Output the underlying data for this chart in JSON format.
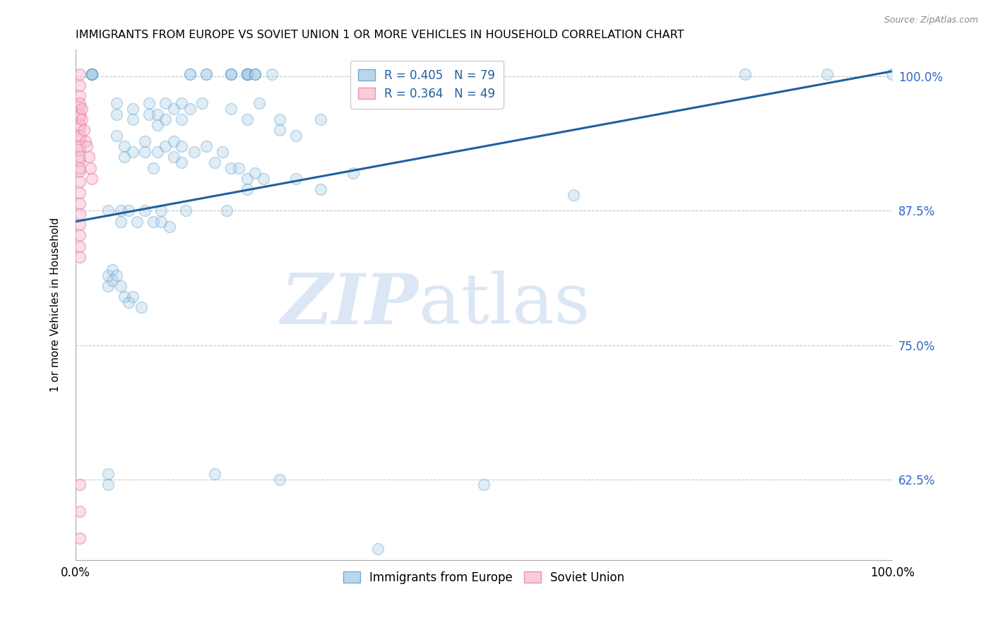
{
  "title": "IMMIGRANTS FROM EUROPE VS SOVIET UNION 1 OR MORE VEHICLES IN HOUSEHOLD CORRELATION CHART",
  "source": "Source: ZipAtlas.com",
  "ylabel": "1 or more Vehicles in Household",
  "xlim": [
    0.0,
    1.0
  ],
  "ylim": [
    0.55,
    1.025
  ],
  "yticks": [
    0.625,
    0.75,
    0.875,
    1.0
  ],
  "ytick_labels": [
    "62.5%",
    "75.0%",
    "87.5%",
    "100.0%"
  ],
  "xticks": [
    0.0,
    0.1,
    0.2,
    0.3,
    0.4,
    0.5,
    0.6,
    0.7,
    0.8,
    0.9,
    1.0
  ],
  "xtick_labels": [
    "0.0%",
    "",
    "",
    "",
    "",
    "",
    "",
    "",
    "",
    "",
    "100.0%"
  ],
  "legend_labels": [
    "Immigrants from Europe",
    "Soviet Union"
  ],
  "blue_R": 0.405,
  "blue_N": 79,
  "pink_R": 0.364,
  "pink_N": 49,
  "blue_color": "#a8cce8",
  "blue_edge_color": "#5b9ec9",
  "pink_color": "#f9bfd0",
  "pink_edge_color": "#e87fa0",
  "trendline_color": "#2060a0",
  "background_color": "#ffffff",
  "watermark_zip": "ZIP",
  "watermark_atlas": "atlas",
  "trendline_x0": 0.0,
  "trendline_y0": 0.865,
  "trendline_x1": 1.0,
  "trendline_y1": 1.005,
  "blue_scatter": [
    [
      0.02,
      1.002
    ],
    [
      0.02,
      1.002
    ],
    [
      0.02,
      1.002
    ],
    [
      0.02,
      1.002
    ],
    [
      0.02,
      1.002
    ],
    [
      0.14,
      1.002
    ],
    [
      0.14,
      1.002
    ],
    [
      0.16,
      1.002
    ],
    [
      0.16,
      1.002
    ],
    [
      0.19,
      1.002
    ],
    [
      0.19,
      1.002
    ],
    [
      0.19,
      1.002
    ],
    [
      0.21,
      1.002
    ],
    [
      0.21,
      1.002
    ],
    [
      0.21,
      1.002
    ],
    [
      0.21,
      1.002
    ],
    [
      0.21,
      1.002
    ],
    [
      0.22,
      1.002
    ],
    [
      0.22,
      1.002
    ],
    [
      0.22,
      1.002
    ],
    [
      0.24,
      1.002
    ],
    [
      0.82,
      1.002
    ],
    [
      0.92,
      1.002
    ],
    [
      1.0,
      1.002
    ],
    [
      0.05,
      0.975
    ],
    [
      0.05,
      0.965
    ],
    [
      0.07,
      0.97
    ],
    [
      0.07,
      0.96
    ],
    [
      0.09,
      0.975
    ],
    [
      0.09,
      0.965
    ],
    [
      0.1,
      0.965
    ],
    [
      0.1,
      0.955
    ],
    [
      0.11,
      0.975
    ],
    [
      0.11,
      0.96
    ],
    [
      0.12,
      0.97
    ],
    [
      0.13,
      0.975
    ],
    [
      0.13,
      0.96
    ],
    [
      0.14,
      0.97
    ],
    [
      0.155,
      0.975
    ],
    [
      0.19,
      0.97
    ],
    [
      0.21,
      0.96
    ],
    [
      0.225,
      0.975
    ],
    [
      0.25,
      0.96
    ],
    [
      0.25,
      0.95
    ],
    [
      0.27,
      0.945
    ],
    [
      0.3,
      0.96
    ],
    [
      0.05,
      0.945
    ],
    [
      0.06,
      0.935
    ],
    [
      0.06,
      0.925
    ],
    [
      0.07,
      0.93
    ],
    [
      0.085,
      0.94
    ],
    [
      0.085,
      0.93
    ],
    [
      0.095,
      0.915
    ],
    [
      0.1,
      0.93
    ],
    [
      0.11,
      0.935
    ],
    [
      0.12,
      0.94
    ],
    [
      0.12,
      0.925
    ],
    [
      0.13,
      0.935
    ],
    [
      0.13,
      0.92
    ],
    [
      0.145,
      0.93
    ],
    [
      0.16,
      0.935
    ],
    [
      0.17,
      0.92
    ],
    [
      0.18,
      0.93
    ],
    [
      0.19,
      0.915
    ],
    [
      0.2,
      0.915
    ],
    [
      0.21,
      0.905
    ],
    [
      0.21,
      0.895
    ],
    [
      0.22,
      0.91
    ],
    [
      0.23,
      0.905
    ],
    [
      0.27,
      0.905
    ],
    [
      0.3,
      0.895
    ],
    [
      0.34,
      0.91
    ],
    [
      0.61,
      0.89
    ],
    [
      0.04,
      0.875
    ],
    [
      0.055,
      0.875
    ],
    [
      0.055,
      0.865
    ],
    [
      0.065,
      0.875
    ],
    [
      0.075,
      0.865
    ],
    [
      0.085,
      0.875
    ],
    [
      0.095,
      0.865
    ],
    [
      0.105,
      0.875
    ],
    [
      0.105,
      0.865
    ],
    [
      0.115,
      0.86
    ],
    [
      0.135,
      0.875
    ],
    [
      0.185,
      0.875
    ],
    [
      0.04,
      0.815
    ],
    [
      0.04,
      0.805
    ],
    [
      0.045,
      0.82
    ],
    [
      0.045,
      0.81
    ],
    [
      0.05,
      0.815
    ],
    [
      0.055,
      0.805
    ],
    [
      0.06,
      0.795
    ],
    [
      0.065,
      0.79
    ],
    [
      0.07,
      0.795
    ],
    [
      0.08,
      0.785
    ],
    [
      0.04,
      0.63
    ],
    [
      0.04,
      0.62
    ],
    [
      0.17,
      0.63
    ],
    [
      0.25,
      0.625
    ],
    [
      0.37,
      0.56
    ],
    [
      0.5,
      0.62
    ]
  ],
  "pink_scatter": [
    [
      0.005,
      1.002
    ],
    [
      0.005,
      0.992
    ],
    [
      0.005,
      0.982
    ],
    [
      0.005,
      0.972
    ],
    [
      0.005,
      0.962
    ],
    [
      0.005,
      0.952
    ],
    [
      0.005,
      0.942
    ],
    [
      0.005,
      0.932
    ],
    [
      0.005,
      0.922
    ],
    [
      0.005,
      0.912
    ],
    [
      0.005,
      0.902
    ],
    [
      0.005,
      0.892
    ],
    [
      0.005,
      0.882
    ],
    [
      0.005,
      0.872
    ],
    [
      0.005,
      0.862
    ],
    [
      0.005,
      0.852
    ],
    [
      0.005,
      0.842
    ],
    [
      0.005,
      0.832
    ],
    [
      0.005,
      0.975
    ],
    [
      0.005,
      0.965
    ],
    [
      0.005,
      0.955
    ],
    [
      0.005,
      0.945
    ],
    [
      0.005,
      0.935
    ],
    [
      0.005,
      0.925
    ],
    [
      0.005,
      0.915
    ],
    [
      0.008,
      0.97
    ],
    [
      0.008,
      0.96
    ],
    [
      0.01,
      0.95
    ],
    [
      0.012,
      0.94
    ],
    [
      0.014,
      0.935
    ],
    [
      0.016,
      0.925
    ],
    [
      0.018,
      0.915
    ],
    [
      0.02,
      0.905
    ],
    [
      0.005,
      0.62
    ],
    [
      0.005,
      0.595
    ],
    [
      0.005,
      0.57
    ]
  ]
}
